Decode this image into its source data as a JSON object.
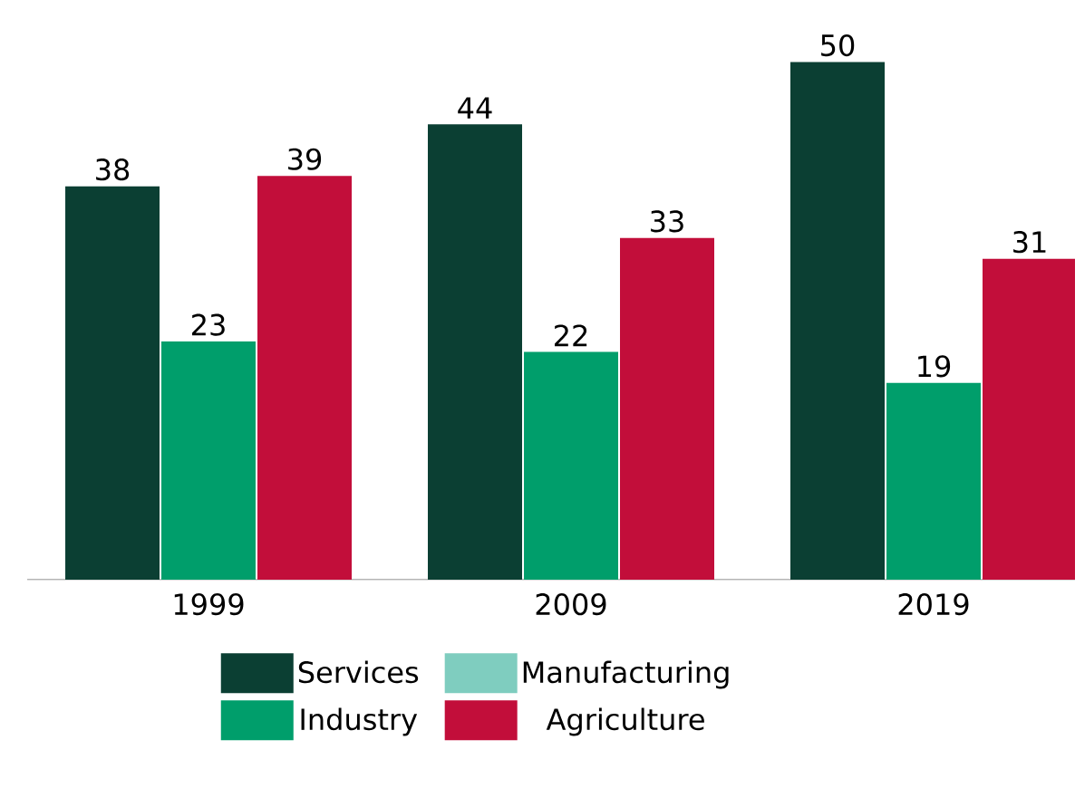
{
  "chart_data": {
    "type": "bar",
    "categories": [
      "1999",
      "2009",
      "2019"
    ],
    "series": [
      {
        "name": "Services",
        "color": "#0b3f33",
        "values": [
          38,
          44,
          50
        ]
      },
      {
        "name": "Manufacturing",
        "color": "#7fcdbf",
        "values": [
          null,
          null,
          null
        ]
      },
      {
        "name": "Industry",
        "color": "#009e6b",
        "values": [
          23,
          22,
          19
        ]
      },
      {
        "name": "Agriculture",
        "color": "#c20e3a",
        "values": [
          39,
          33,
          31
        ]
      }
    ],
    "data_labels": true,
    "legend": "bottom"
  }
}
